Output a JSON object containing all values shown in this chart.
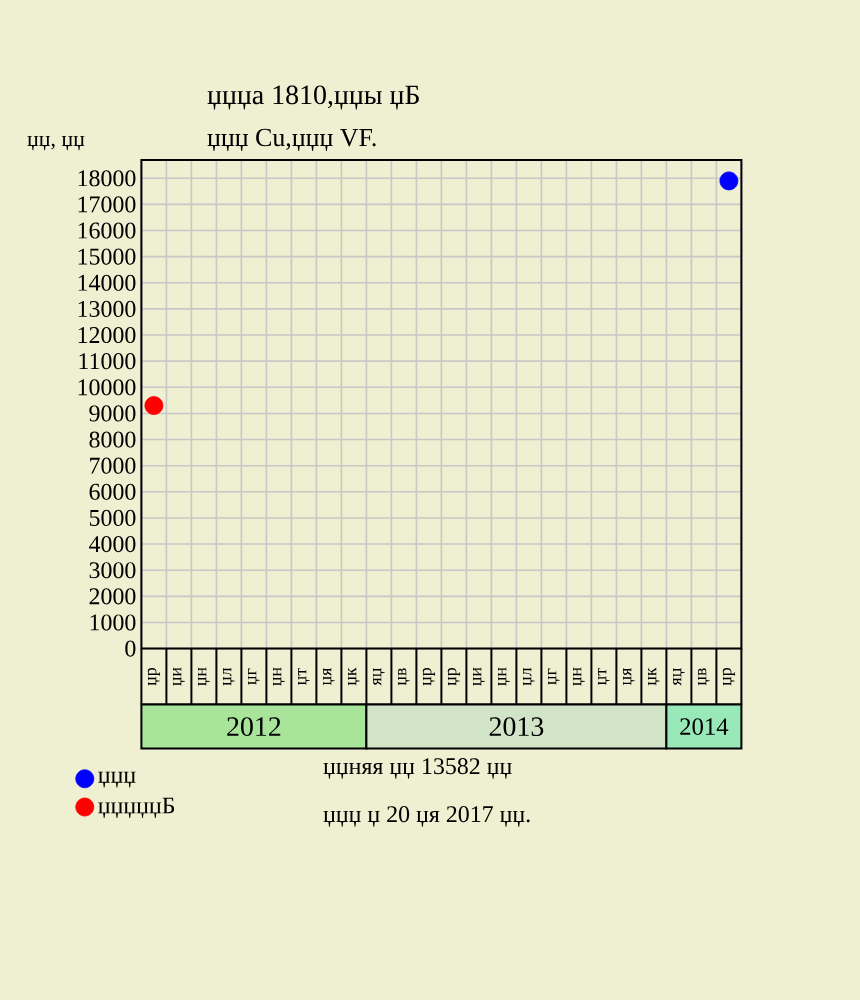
{
  "chart_data": {
    "type": "scatter",
    "title": "џџџа 1810,џџы џБ",
    "subtitle": "џџџ Cu,џџџ VF.",
    "ylabel": "џџ, џџ",
    "categories": [
      "џр",
      "џи",
      "џн",
      "џл",
      "џг",
      "џн",
      "џт",
      "џя",
      "џк",
      "яџ",
      "џв",
      "џр",
      "џр",
      "џи",
      "џн",
      "џл",
      "џг",
      "џн",
      "џт",
      "џя",
      "џк",
      "яџ",
      "џв",
      "џр"
    ],
    "series": [
      {
        "name": "џџџ",
        "color": "#0000ff",
        "values": [
          null,
          null,
          null,
          null,
          null,
          null,
          null,
          null,
          null,
          null,
          null,
          null,
          null,
          null,
          null,
          null,
          null,
          null,
          null,
          null,
          null,
          null,
          null,
          17900
        ]
      },
      {
        "name": "џџџџџБ",
        "color": "#ff0000",
        "values": [
          9300,
          null,
          null,
          null,
          null,
          null,
          null,
          null,
          null,
          null,
          null,
          null,
          null,
          null,
          null,
          null,
          null,
          null,
          null,
          null,
          null,
          null,
          null,
          null
        ]
      }
    ],
    "ylim": [
      0,
      18700
    ],
    "yticks": [
      0,
      1000,
      2000,
      3000,
      4000,
      5000,
      6000,
      7000,
      8000,
      9000,
      10000,
      11000,
      12000,
      13000,
      14000,
      15000,
      16000,
      17000,
      18000
    ],
    "grid": true,
    "legend": "bottom left",
    "annotations": [
      "2012",
      "2013",
      "2014",
      "џџняя џџ 13582 џџ",
      "џџџ џ 20 џя 2017 џџ."
    ]
  }
}
